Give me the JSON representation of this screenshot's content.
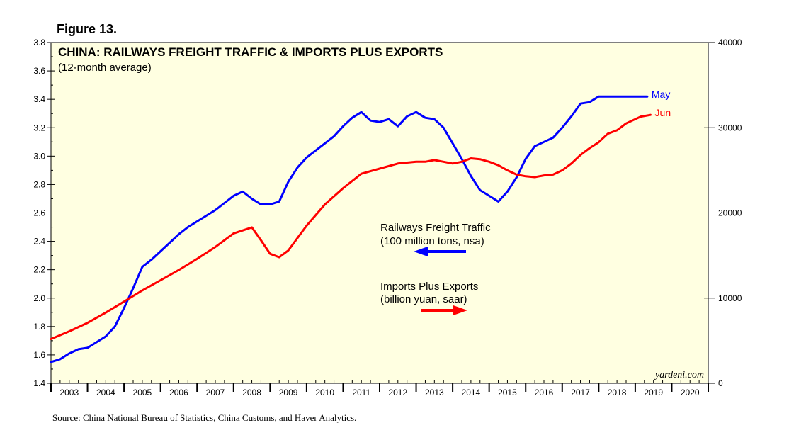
{
  "figure_label": "Figure 13.",
  "source": "Source: China National Bureau of Statistics, China Customs, and Haver Analytics.",
  "watermark": "yardeni.com",
  "chart_data": {
    "type": "line",
    "title": "CHINA: RAILWAYS FREIGHT TRAFFIC & IMPORTS PLUS EXPORTS",
    "subtitle": "(12-month average)",
    "x_range": [
      2003,
      2021
    ],
    "x_tick_labels": [
      "2003",
      "2004",
      "2005",
      "2006",
      "2007",
      "2008",
      "2009",
      "2010",
      "2011",
      "2012",
      "2013",
      "2014",
      "2015",
      "2016",
      "2017",
      "2018",
      "2019",
      "2020"
    ],
    "left_axis": {
      "ylim": [
        1.4,
        3.8
      ],
      "ticks": [
        "1.4",
        "1.6",
        "1.8",
        "2.0",
        "2.2",
        "2.4",
        "2.6",
        "2.8",
        "3.0",
        "3.2",
        "3.4",
        "3.6",
        "3.8"
      ]
    },
    "right_axis": {
      "ylim": [
        0,
        40000
      ],
      "ticks": [
        "0",
        "10000",
        "20000",
        "30000",
        "40000"
      ]
    },
    "series": [
      {
        "name": "Railways Freight Traffic",
        "legend_line2": "(100 million tons, nsa)",
        "axis": "left",
        "color": "#0000ff",
        "end_label": "May",
        "x": [
          2003.0,
          2003.25,
          2003.5,
          2003.75,
          2004.0,
          2004.25,
          2004.5,
          2004.75,
          2005.0,
          2005.25,
          2005.5,
          2005.75,
          2006.0,
          2006.25,
          2006.5,
          2006.75,
          2007.0,
          2007.25,
          2007.5,
          2007.75,
          2008.0,
          2008.25,
          2008.5,
          2008.75,
          2009.0,
          2009.25,
          2009.5,
          2009.75,
          2010.0,
          2010.25,
          2010.5,
          2010.75,
          2011.0,
          2011.25,
          2011.5,
          2011.75,
          2012.0,
          2012.25,
          2012.5,
          2012.75,
          2013.0,
          2013.25,
          2013.5,
          2013.75,
          2014.0,
          2014.25,
          2014.5,
          2014.75,
          2015.0,
          2015.25,
          2015.5,
          2015.75,
          2016.0,
          2016.25,
          2016.5,
          2016.75,
          2017.0,
          2017.25,
          2017.5,
          2017.75,
          2018.0,
          2018.25,
          2018.5,
          2018.75,
          2019.0,
          2019.15,
          2019.33
        ],
        "values": [
          1.55,
          1.57,
          1.61,
          1.64,
          1.65,
          1.69,
          1.73,
          1.8,
          1.93,
          2.07,
          2.22,
          2.27,
          2.33,
          2.39,
          2.45,
          2.5,
          2.54,
          2.58,
          2.62,
          2.67,
          2.72,
          2.75,
          2.7,
          2.66,
          2.66,
          2.68,
          2.82,
          2.92,
          2.99,
          3.04,
          3.09,
          3.14,
          3.21,
          3.27,
          3.31,
          3.25,
          3.24,
          3.26,
          3.21,
          3.28,
          3.31,
          3.27,
          3.26,
          3.2,
          3.09,
          2.98,
          2.86,
          2.76,
          2.72,
          2.68,
          2.75,
          2.85,
          2.98,
          3.07,
          3.1,
          3.13,
          3.2,
          3.28,
          3.37,
          3.38,
          3.42,
          3.42,
          3.42,
          3.42,
          3.42,
          3.42,
          3.42
        ]
      },
      {
        "name": "Imports Plus Exports",
        "legend_line2": "(billion yuan, saar)",
        "axis": "right",
        "color": "#ff0000",
        "end_label": "Jun",
        "x": [
          2003.0,
          2003.5,
          2004.0,
          2004.5,
          2005.0,
          2005.5,
          2006.0,
          2006.5,
          2007.0,
          2007.5,
          2008.0,
          2008.5,
          2008.75,
          2009.0,
          2009.25,
          2009.5,
          2010.0,
          2010.5,
          2011.0,
          2011.5,
          2012.0,
          2012.5,
          2013.0,
          2013.25,
          2013.5,
          2013.75,
          2014.0,
          2014.25,
          2014.5,
          2014.75,
          2015.0,
          2015.25,
          2015.5,
          2015.75,
          2016.0,
          2016.25,
          2016.5,
          2016.75,
          2017.0,
          2017.25,
          2017.5,
          2017.75,
          2018.0,
          2018.25,
          2018.5,
          2018.75,
          2019.0,
          2019.15,
          2019.42
        ],
        "values": [
          5200,
          6100,
          7100,
          8300,
          9600,
          10900,
          12100,
          13300,
          14600,
          16000,
          17600,
          18300,
          16800,
          15200,
          14800,
          15600,
          18500,
          21000,
          22900,
          24600,
          25200,
          25800,
          26000,
          26000,
          26200,
          26000,
          25800,
          26000,
          26400,
          26300,
          26000,
          25600,
          25000,
          24500,
          24300,
          24200,
          24400,
          24500,
          25000,
          25800,
          26800,
          27600,
          28300,
          29300,
          29700,
          30500,
          31000,
          31300,
          31500
        ]
      }
    ]
  }
}
